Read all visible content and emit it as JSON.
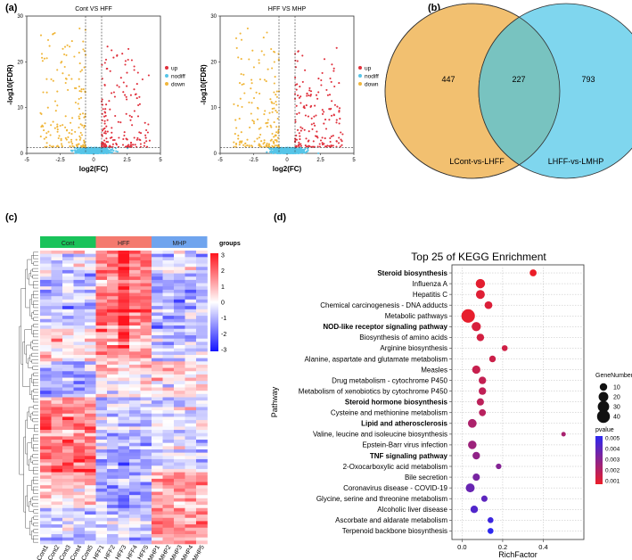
{
  "panel_labels": {
    "a": "(a)",
    "b": "(b)",
    "c": "(c)",
    "d": "(d)"
  },
  "chart_data": [
    {
      "type": "scatter",
      "panel": "a",
      "title": "Cont VS HFF",
      "xlabel": "log2(FC)",
      "ylabel": "-log10(FDR)",
      "xlim": [
        -5,
        5
      ],
      "ylim": [
        0,
        30
      ],
      "xticks": [
        "-5",
        "-2.5",
        "0",
        "2.5",
        "5"
      ],
      "yticks": [
        "0",
        "10",
        "20",
        "30"
      ],
      "legend": [
        "up",
        "nodiff",
        "down"
      ],
      "colors": {
        "up": "#e0303c",
        "nodiff": "#56c5e8",
        "down": "#f0b63a"
      },
      "fc_cutoff": 0.6,
      "fdr_line": 1.3,
      "seed": 11
    },
    {
      "type": "scatter",
      "panel": "a",
      "title": "HFF VS MHP",
      "xlabel": "log2(FC)",
      "ylabel": "-log10(FDR)",
      "xlim": [
        -5,
        5
      ],
      "ylim": [
        0,
        30
      ],
      "xticks": [
        "-5",
        "-2.5",
        "0",
        "2.5",
        "5"
      ],
      "yticks": [
        "0",
        "10",
        "20",
        "30"
      ],
      "legend": [
        "up",
        "nodiff",
        "down"
      ],
      "colors": {
        "up": "#e0303c",
        "nodiff": "#56c5e8",
        "down": "#f0b63a"
      },
      "fc_cutoff": 0.6,
      "fdr_line": 1.3,
      "seed": 29
    },
    {
      "type": "venn",
      "panel": "b",
      "sets": [
        "LCont-vs-LHFF",
        "LHFF-vs-LMHP"
      ],
      "left_only": 447,
      "overlap": 227,
      "right_only": 793,
      "colors": {
        "left": "#f2c070",
        "right": "#7fd6ee",
        "overlap": "#78c3c0"
      }
    },
    {
      "type": "heatmap",
      "panel": "c",
      "groups": [
        {
          "name": "Cont",
          "color": "#19c35a"
        },
        {
          "name": "HFF",
          "color": "#f47a6e"
        },
        {
          "name": "MHP",
          "color": "#6fa4ee"
        }
      ],
      "samples": [
        "Cont1",
        "Cont2",
        "Cont3",
        "Cont4",
        "Cont5",
        "HFF1",
        "HFF2",
        "HFF3",
        "HFF4",
        "HFF5",
        "MHP1",
        "MHP2",
        "MHP3",
        "MHP4",
        "MHP5"
      ],
      "legend_title": "groups",
      "scale": {
        "min": -3,
        "max": 3,
        "ticks": [
          "3",
          "2",
          "1",
          "0",
          "-1",
          "-2",
          "-3"
        ]
      },
      "rows": 90,
      "seed": 7
    },
    {
      "type": "scatter",
      "panel": "d",
      "title": "Top 25 of KEGG Enrichment",
      "xlabel": "RichFactor",
      "ylabel": "Pathway",
      "xlim": [
        -0.05,
        0.6
      ],
      "xticks": [
        0.0,
        0.2,
        0.4
      ],
      "xtick_labels": [
        "0.0",
        "0.2",
        "0.4"
      ],
      "size_legend_title": "GeneNumber",
      "size_legend": [
        "10",
        "20",
        "30",
        "40"
      ],
      "color_legend_title": "pvalue",
      "color_legend": [
        "0.005",
        "0.004",
        "0.003",
        "0.002",
        "0.001"
      ],
      "pathways": [
        {
          "name": "Steroid biosynthesis",
          "rich": 0.35,
          "genes": 8,
          "p": 0.0002,
          "bold": true
        },
        {
          "name": "Influenza A",
          "rich": 0.09,
          "genes": 18,
          "p": 0.0004,
          "bold": false
        },
        {
          "name": "Hepatitis C",
          "rich": 0.09,
          "genes": 16,
          "p": 0.0005,
          "bold": false
        },
        {
          "name": "Chemical carcinogenesis - DNA adducts",
          "rich": 0.13,
          "genes": 11,
          "p": 0.0006,
          "bold": false
        },
        {
          "name": "Metabolic pathways",
          "rich": 0.03,
          "genes": 45,
          "p": 0.0003,
          "bold": false
        },
        {
          "name": "NOD-like receptor signaling pathway",
          "rich": 0.07,
          "genes": 17,
          "p": 0.0007,
          "bold": true
        },
        {
          "name": "Biosynthesis of amino acids",
          "rich": 0.09,
          "genes": 10,
          "p": 0.0008,
          "bold": false
        },
        {
          "name": "Arginine biosynthesis",
          "rich": 0.21,
          "genes": 5,
          "p": 0.0009,
          "bold": false
        },
        {
          "name": "Alanine, aspartate and glutamate metabolism",
          "rich": 0.15,
          "genes": 7,
          "p": 0.001,
          "bold": false
        },
        {
          "name": "Measles",
          "rich": 0.07,
          "genes": 13,
          "p": 0.0011,
          "bold": false
        },
        {
          "name": "Drug metabolism - cytochrome P450",
          "rich": 0.1,
          "genes": 10,
          "p": 0.0012,
          "bold": false
        },
        {
          "name": "Metabolism of xenobiotics by cytochrome P450",
          "rich": 0.1,
          "genes": 10,
          "p": 0.0013,
          "bold": false
        },
        {
          "name": "Steroid hormone biosynthesis",
          "rich": 0.09,
          "genes": 9,
          "p": 0.0014,
          "bold": true
        },
        {
          "name": "Cysteine and methionine metabolism",
          "rich": 0.1,
          "genes": 8,
          "p": 0.0015,
          "bold": false
        },
        {
          "name": "Lipid and atherosclerosis",
          "rich": 0.05,
          "genes": 15,
          "p": 0.0018,
          "bold": true
        },
        {
          "name": "Valine, leucine and isoleucine biosynthesis",
          "rich": 0.5,
          "genes": 2,
          "p": 0.0019,
          "bold": false
        },
        {
          "name": "Epstein-Barr virus infection",
          "rich": 0.05,
          "genes": 14,
          "p": 0.0022,
          "bold": false
        },
        {
          "name": "TNF signaling pathway",
          "rich": 0.07,
          "genes": 10,
          "p": 0.0025,
          "bold": true
        },
        {
          "name": "2-Oxocarboxylic acid metabolism",
          "rich": 0.18,
          "genes": 4,
          "p": 0.0028,
          "bold": false
        },
        {
          "name": "Bile secretion",
          "rich": 0.07,
          "genes": 9,
          "p": 0.0031,
          "bold": false
        },
        {
          "name": "Coronavirus disease - COVID-19",
          "rich": 0.04,
          "genes": 16,
          "p": 0.0035,
          "bold": false
        },
        {
          "name": "Glycine, serine and threonine metabolism",
          "rich": 0.11,
          "genes": 6,
          "p": 0.0038,
          "bold": false
        },
        {
          "name": "Alcoholic liver disease",
          "rich": 0.06,
          "genes": 10,
          "p": 0.0041,
          "bold": false
        },
        {
          "name": "Ascorbate and aldarate metabolism",
          "rich": 0.14,
          "genes": 5,
          "p": 0.0046,
          "bold": false
        },
        {
          "name": "Terpenoid backbone biosynthesis",
          "rich": 0.14,
          "genes": 5,
          "p": 0.005,
          "bold": false
        }
      ]
    }
  ]
}
